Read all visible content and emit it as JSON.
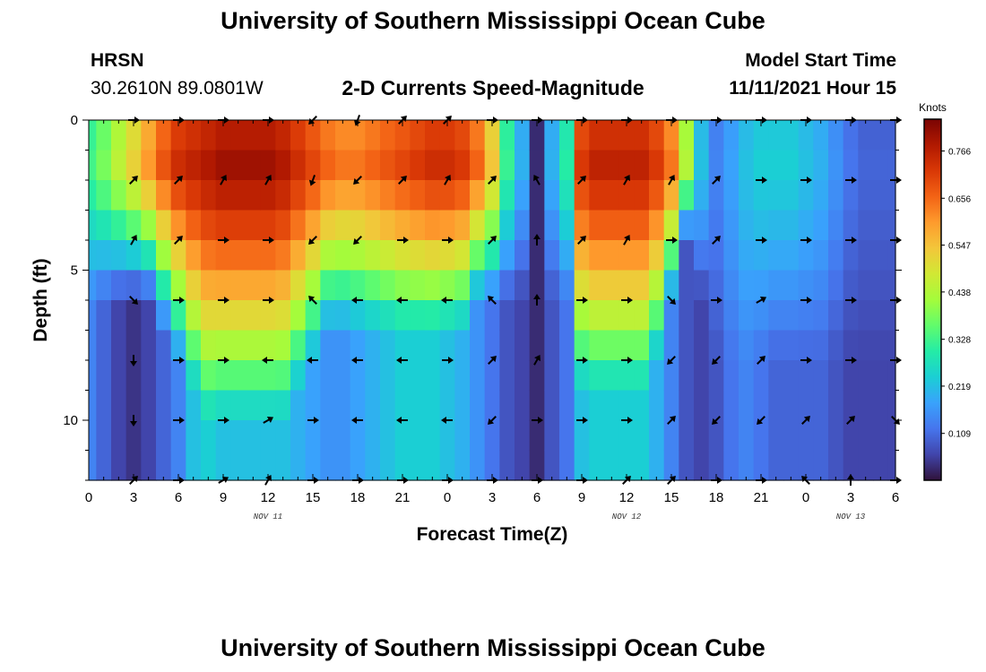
{
  "header": {
    "title": "University of Southern Mississippi Ocean Cube",
    "station": "HRSN",
    "location": "30.2610N  89.0801W",
    "subtitle": "2-D Currents Speed-Magnitude",
    "model_label": "Model Start Time",
    "model_time": "11/11/2021 Hour 15"
  },
  "footer": {
    "title": "University of Southern Mississippi Ocean Cube"
  },
  "colors": {
    "palette": [
      "#30123b",
      "#4145ab",
      "#4675ed",
      "#39a2fc",
      "#1bcfd4",
      "#24eca6",
      "#61fc6c",
      "#a4fc3b",
      "#d1e834",
      "#f3c63a",
      "#fe9b2d",
      "#f36315",
      "#d93806",
      "#b11901",
      "#7a0403"
    ],
    "arrow": "#000000",
    "axis": "#000000"
  },
  "chart_data": {
    "type": "heatmap",
    "title": "2-D Currents Speed-Magnitude",
    "xlabel": "Forecast Time(Z)",
    "ylabel": "Depth (ft)",
    "xlim": [
      0,
      54
    ],
    "ylim": [
      12,
      0
    ],
    "x_ticks": [
      {
        "x": 0,
        "label": "0"
      },
      {
        "x": 3,
        "label": "3"
      },
      {
        "x": 6,
        "label": "6"
      },
      {
        "x": 9,
        "label": "9"
      },
      {
        "x": 12,
        "label": "12"
      },
      {
        "x": 15,
        "label": "15"
      },
      {
        "x": 18,
        "label": "18"
      },
      {
        "x": 21,
        "label": "21"
      },
      {
        "x": 24,
        "label": "0"
      },
      {
        "x": 27,
        "label": "3"
      },
      {
        "x": 30,
        "label": "6"
      },
      {
        "x": 33,
        "label": "9"
      },
      {
        "x": 36,
        "label": "12"
      },
      {
        "x": 39,
        "label": "15"
      },
      {
        "x": 42,
        "label": "18"
      },
      {
        "x": 45,
        "label": "21"
      },
      {
        "x": 48,
        "label": "0"
      },
      {
        "x": 51,
        "label": "3"
      },
      {
        "x": 54,
        "label": "6"
      }
    ],
    "date_labels": [
      {
        "x": 12,
        "label": "NOV 11"
      },
      {
        "x": 36,
        "label": "NOV 12"
      },
      {
        "x": 51,
        "label": "NOV 13"
      }
    ],
    "y_ticks": [
      {
        "y": 0,
        "label": "0"
      },
      {
        "y": 5,
        "label": "5"
      },
      {
        "y": 10,
        "label": "10"
      }
    ],
    "colorbar": {
      "label": "Knots",
      "min": 0.0,
      "max": 0.84,
      "ticks": [
        0.109,
        0.219,
        0.328,
        0.438,
        0.547,
        0.656,
        0.766
      ]
    },
    "depth_rows": [
      0.5,
      1.5,
      2.5,
      3.5,
      4.5,
      5.5,
      6.5,
      7.5,
      8.5,
      9.5,
      10.5,
      11.5
    ],
    "speed_profile": {
      "hours": [
        0,
        1,
        2,
        3,
        4,
        5,
        6,
        7,
        8,
        9,
        10,
        11,
        12,
        13,
        14,
        15,
        16,
        17,
        18,
        19,
        20,
        21,
        22,
        23,
        24,
        25,
        26,
        27,
        28,
        29,
        30,
        31,
        32,
        33,
        34,
        35,
        36,
        37,
        38,
        39,
        40,
        41,
        42,
        43,
        44,
        45,
        46,
        47,
        48,
        49,
        50,
        51,
        52,
        53,
        54
      ],
      "surface_knots": [
        0.33,
        0.38,
        0.45,
        0.52,
        0.6,
        0.68,
        0.74,
        0.76,
        0.78,
        0.8,
        0.8,
        0.8,
        0.8,
        0.78,
        0.74,
        0.7,
        0.66,
        0.64,
        0.64,
        0.66,
        0.68,
        0.7,
        0.72,
        0.74,
        0.74,
        0.72,
        0.66,
        0.54,
        0.32,
        0.2,
        0.03,
        0.2,
        0.3,
        0.72,
        0.76,
        0.76,
        0.76,
        0.76,
        0.72,
        0.64,
        0.44,
        0.22,
        0.14,
        0.18,
        0.22,
        0.24,
        0.24,
        0.24,
        0.22,
        0.2,
        0.16,
        0.12,
        0.1,
        0.1,
        0.1
      ],
      "bottom_knots": [
        0.14,
        0.1,
        0.06,
        0.04,
        0.06,
        0.1,
        0.14,
        0.22,
        0.24,
        0.22,
        0.22,
        0.22,
        0.22,
        0.22,
        0.2,
        0.18,
        0.16,
        0.16,
        0.18,
        0.2,
        0.22,
        0.24,
        0.24,
        0.24,
        0.22,
        0.2,
        0.16,
        0.12,
        0.08,
        0.06,
        0.03,
        0.08,
        0.12,
        0.22,
        0.24,
        0.24,
        0.24,
        0.24,
        0.2,
        0.14,
        0.08,
        0.06,
        0.08,
        0.12,
        0.14,
        0.12,
        0.1,
        0.1,
        0.1,
        0.1,
        0.08,
        0.06,
        0.06,
        0.06,
        0.06
      ],
      "decay_depth_ft": [
        6,
        6,
        6,
        6,
        6,
        7,
        8,
        9,
        10,
        10,
        10,
        10,
        10,
        10,
        9,
        8,
        7,
        7,
        7,
        7,
        7,
        7,
        7,
        7,
        7,
        7,
        6,
        6,
        6,
        6,
        9,
        6,
        6,
        9,
        9,
        9,
        9,
        9,
        8,
        6,
        4,
        6,
        8,
        8,
        8,
        8,
        8,
        8,
        8,
        8,
        8,
        8,
        8,
        8,
        8
      ]
    },
    "vector_times": [
      3,
      6,
      9,
      12,
      15,
      18,
      21,
      24,
      27,
      30,
      33,
      36,
      39,
      42,
      45,
      48,
      51,
      54
    ],
    "vector_depths": [
      0,
      2,
      4,
      6,
      8,
      10,
      12
    ],
    "vector_directions_deg": [
      [
        90,
        90,
        90,
        90,
        225,
        200,
        45,
        45,
        90,
        90,
        90,
        90,
        90,
        90,
        90,
        90,
        90,
        90
      ],
      [
        45,
        45,
        30,
        30,
        200,
        225,
        45,
        30,
        45,
        330,
        45,
        30,
        30,
        45,
        90,
        90,
        90,
        90
      ],
      [
        30,
        45,
        90,
        90,
        225,
        225,
        90,
        90,
        45,
        0,
        45,
        30,
        90,
        45,
        90,
        90,
        90,
        90
      ],
      [
        135,
        90,
        90,
        90,
        315,
        270,
        270,
        270,
        315,
        0,
        90,
        90,
        135,
        90,
        60,
        90,
        90,
        90
      ],
      [
        180,
        90,
        90,
        270,
        270,
        270,
        270,
        90,
        45,
        30,
        90,
        90,
        225,
        225,
        45,
        90,
        90,
        90
      ],
      [
        180,
        90,
        90,
        60,
        90,
        270,
        270,
        270,
        225,
        90,
        90,
        90,
        45,
        225,
        225,
        45,
        45,
        135
      ],
      [
        45,
        90,
        60,
        30,
        90,
        90,
        90,
        90,
        90,
        90,
        90,
        45,
        45,
        90,
        90,
        315,
        0,
        90
      ]
    ]
  }
}
